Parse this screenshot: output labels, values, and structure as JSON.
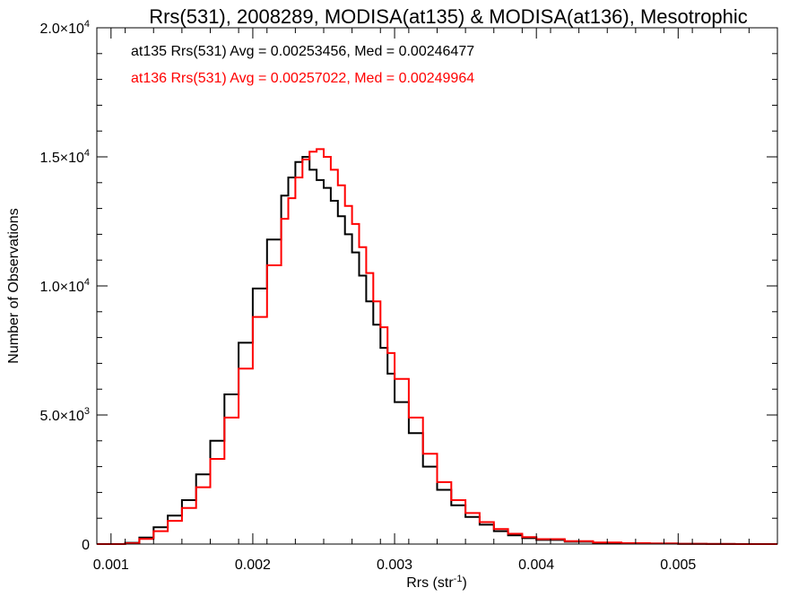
{
  "chart_data": {
    "type": "line",
    "title": "Rrs(531), 2008289, MODISA(at135) & MODISA(at136), Mesotrophic",
    "xlabel": "Rrs (str",
    "xlabel_sup": "-1",
    "xlabel_close": ")",
    "ylabel": "Number of Observations",
    "xlim": [
      0.0009,
      0.0057
    ],
    "ylim": [
      0,
      20000
    ],
    "x_ticks": [
      {
        "value": 0.001,
        "label": "0.001"
      },
      {
        "value": 0.002,
        "label": "0.002"
      },
      {
        "value": 0.003,
        "label": "0.003"
      },
      {
        "value": 0.004,
        "label": "0.004"
      },
      {
        "value": 0.005,
        "label": "0.005"
      }
    ],
    "y_ticks": [
      {
        "value": 0,
        "label": "0",
        "sup": ""
      },
      {
        "value": 5000,
        "label": "5.0×10",
        "sup": "3"
      },
      {
        "value": 10000,
        "label": "1.0×10",
        "sup": "4"
      },
      {
        "value": 15000,
        "label": "1.5×10",
        "sup": "4"
      },
      {
        "value": 20000,
        "label": "2.0×10",
        "sup": "4"
      }
    ],
    "grid": false,
    "legend_position": "top-left",
    "series": [
      {
        "name": "at135",
        "annotation": "at135 Rrs(531) Avg = 0.00253456, Med = 0.00246477",
        "color": "#000000",
        "x": [
          0.0009,
          0.001,
          0.0011,
          0.0012,
          0.0013,
          0.0014,
          0.0015,
          0.0016,
          0.0017,
          0.0018,
          0.0019,
          0.002,
          0.0021,
          0.0022,
          0.00225,
          0.0023,
          0.00235,
          0.0024,
          0.00245,
          0.0025,
          0.00255,
          0.0026,
          0.00265,
          0.0027,
          0.00275,
          0.0028,
          0.00285,
          0.0029,
          0.00295,
          0.003,
          0.0031,
          0.0032,
          0.0033,
          0.0034,
          0.0035,
          0.0036,
          0.0037,
          0.0038,
          0.0039,
          0.004,
          0.0042,
          0.0044,
          0.0046,
          0.0048,
          0.005,
          0.0052,
          0.0054,
          0.0057
        ],
        "y": [
          0,
          0,
          50,
          250,
          650,
          1100,
          1700,
          2700,
          4000,
          5800,
          7800,
          9900,
          11800,
          13500,
          14200,
          14800,
          15000,
          14500,
          14100,
          13800,
          13300,
          12700,
          12000,
          11300,
          10400,
          9400,
          8500,
          7600,
          6600,
          5500,
          4300,
          3000,
          2100,
          1500,
          1050,
          750,
          500,
          340,
          230,
          160,
          90,
          50,
          30,
          20,
          10,
          5,
          0,
          0
        ]
      },
      {
        "name": "at136",
        "annotation": "at136 Rrs(531) Avg = 0.00257022, Med = 0.00249964",
        "color": "#ff0000",
        "x": [
          0.0009,
          0.001,
          0.0011,
          0.0012,
          0.0013,
          0.0014,
          0.0015,
          0.0016,
          0.0017,
          0.0018,
          0.0019,
          0.002,
          0.0021,
          0.0022,
          0.00225,
          0.0023,
          0.00235,
          0.0024,
          0.00245,
          0.0025,
          0.00255,
          0.0026,
          0.00265,
          0.0027,
          0.00275,
          0.0028,
          0.00285,
          0.0029,
          0.00295,
          0.003,
          0.0031,
          0.0032,
          0.0033,
          0.0034,
          0.0035,
          0.0036,
          0.0037,
          0.0038,
          0.0039,
          0.004,
          0.0042,
          0.0044,
          0.0046,
          0.0048,
          0.005,
          0.0052,
          0.0054,
          0.0057
        ],
        "y": [
          0,
          0,
          30,
          200,
          500,
          900,
          1400,
          2200,
          3300,
          4900,
          6800,
          8800,
          10800,
          12600,
          13400,
          14200,
          14900,
          15200,
          15300,
          15000,
          14500,
          13900,
          13100,
          12400,
          11500,
          10500,
          9400,
          8400,
          7400,
          6400,
          4900,
          3500,
          2400,
          1700,
          1200,
          850,
          580,
          400,
          270,
          190,
          110,
          60,
          35,
          20,
          10,
          5,
          0,
          0
        ]
      }
    ]
  }
}
